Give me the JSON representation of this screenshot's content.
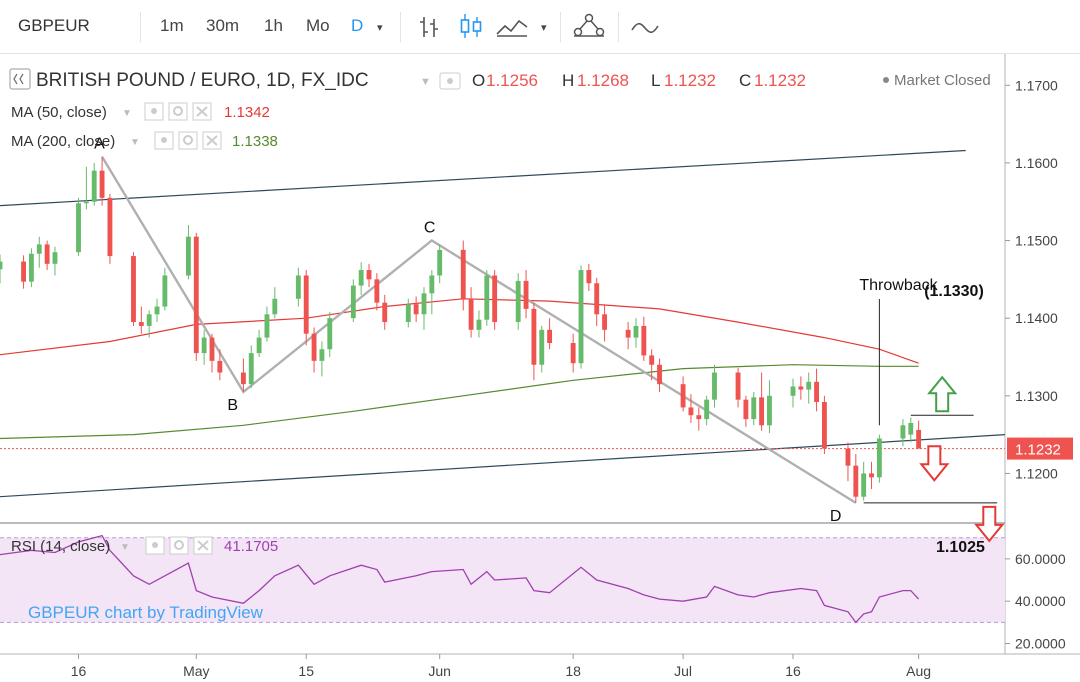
{
  "toolbar": {
    "symbol": "GBPEUR",
    "intervals": [
      "1m",
      "30m",
      "1h",
      "Mo",
      "D"
    ],
    "active_interval": "D",
    "icons": [
      "bar-style-icon",
      "candle-style-icon",
      "area-style-icon",
      "chevron-down-icon",
      "indicators-icon",
      "compare-icon"
    ]
  },
  "legend": {
    "title": "BRITISH POUND / EURO, 1D, FX_IDC",
    "o_label": "O",
    "o_value": "1.1256",
    "h_label": "H",
    "h_value": "1.1268",
    "l_label": "L",
    "l_value": "1.1232",
    "c_label": "C",
    "c_value": "1.1232",
    "market_status": "Market Closed",
    "ma50_label": "MA (50, close)",
    "ma50_value": "1.1342",
    "ma200_label": "MA (200, close)",
    "ma200_value": "1.1338",
    "rsi_label": "RSI (14, close)",
    "rsi_value": "41.1705",
    "watermark": "GBPEUR chart by TradingView"
  },
  "annotations": {
    "A": "A",
    "B": "B",
    "C": "C",
    "D": "D",
    "throwback": "Throwback",
    "target_up": "(1.1330)",
    "target_down": "1.1025"
  },
  "colors": {
    "up": "#66bb6a",
    "down": "#ef5350",
    "ma50": "#e53935",
    "ma200": "#558b2f",
    "channel": "#2e4a58",
    "pattern": "#b0b0b0",
    "rsi": "#a040b0",
    "rsi_band": "#f3e5f5",
    "arrow_up": "#43a047",
    "arrow_down": "#e53935",
    "price_label": "#ef5350"
  },
  "chart_data": {
    "type": "candlestick",
    "symbol": "GBPEUR",
    "interval": "1D",
    "y_axis_ticks": [
      "1.1700",
      "1.1600",
      "1.1500",
      "1.1400",
      "1.1300",
      "1.1200"
    ],
    "y_range": [
      1.114,
      1.173
    ],
    "current_price_label": "1.1232",
    "x_axis_ticks": [
      "16",
      "May",
      "15",
      "Jun",
      "18",
      "Jul",
      "16",
      "Aug"
    ],
    "x_range": [
      "2018-04-06",
      "2018-08-12"
    ],
    "x_tick_dates": [
      "2018-04-16",
      "2018-05-01",
      "2018-05-15",
      "2018-06-01",
      "2018-06-18",
      "2018-07-02",
      "2018-07-16",
      "2018-08-01"
    ],
    "candles": [
      {
        "date": "2018-04-06",
        "o": 1.1463,
        "h": 1.1482,
        "l": 1.1445,
        "c": 1.1473
      },
      {
        "date": "2018-04-09",
        "o": 1.1473,
        "h": 1.1481,
        "l": 1.1438,
        "c": 1.1447
      },
      {
        "date": "2018-04-10",
        "o": 1.1447,
        "h": 1.149,
        "l": 1.144,
        "c": 1.1483
      },
      {
        "date": "2018-04-11",
        "o": 1.1483,
        "h": 1.1505,
        "l": 1.1465,
        "c": 1.1495
      },
      {
        "date": "2018-04-12",
        "o": 1.1495,
        "h": 1.15,
        "l": 1.1462,
        "c": 1.147
      },
      {
        "date": "2018-04-13",
        "o": 1.147,
        "h": 1.1492,
        "l": 1.1455,
        "c": 1.1485
      },
      {
        "date": "2018-04-16",
        "o": 1.1485,
        "h": 1.1555,
        "l": 1.148,
        "c": 1.1548
      },
      {
        "date": "2018-04-17",
        "o": 1.1548,
        "h": 1.1595,
        "l": 1.154,
        "c": 1.155
      },
      {
        "date": "2018-04-18",
        "o": 1.155,
        "h": 1.16,
        "l": 1.1545,
        "c": 1.159
      },
      {
        "date": "2018-04-19",
        "o": 1.159,
        "h": 1.1608,
        "l": 1.1545,
        "c": 1.1555
      },
      {
        "date": "2018-04-20",
        "o": 1.1555,
        "h": 1.156,
        "l": 1.147,
        "c": 1.148
      },
      {
        "date": "2018-04-23",
        "o": 1.148,
        "h": 1.1485,
        "l": 1.139,
        "c": 1.1395
      },
      {
        "date": "2018-04-24",
        "o": 1.1395,
        "h": 1.1415,
        "l": 1.138,
        "c": 1.139
      },
      {
        "date": "2018-04-25",
        "o": 1.139,
        "h": 1.141,
        "l": 1.1375,
        "c": 1.1405
      },
      {
        "date": "2018-04-26",
        "o": 1.1405,
        "h": 1.1425,
        "l": 1.1395,
        "c": 1.1415
      },
      {
        "date": "2018-04-27",
        "o": 1.1415,
        "h": 1.1465,
        "l": 1.141,
        "c": 1.1455
      },
      {
        "date": "2018-04-30",
        "o": 1.1455,
        "h": 1.152,
        "l": 1.145,
        "c": 1.1505
      },
      {
        "date": "2018-05-01",
        "o": 1.1505,
        "h": 1.151,
        "l": 1.1345,
        "c": 1.1355
      },
      {
        "date": "2018-05-02",
        "o": 1.1355,
        "h": 1.1385,
        "l": 1.134,
        "c": 1.1375
      },
      {
        "date": "2018-05-03",
        "o": 1.1375,
        "h": 1.138,
        "l": 1.133,
        "c": 1.1345
      },
      {
        "date": "2018-05-04",
        "o": 1.1345,
        "h": 1.136,
        "l": 1.132,
        "c": 1.133
      },
      {
        "date": "2018-05-07",
        "o": 1.133,
        "h": 1.1348,
        "l": 1.1305,
        "c": 1.1315
      },
      {
        "date": "2018-05-08",
        "o": 1.1315,
        "h": 1.1365,
        "l": 1.131,
        "c": 1.1355
      },
      {
        "date": "2018-05-09",
        "o": 1.1355,
        "h": 1.1385,
        "l": 1.135,
        "c": 1.1375
      },
      {
        "date": "2018-05-10",
        "o": 1.1375,
        "h": 1.1415,
        "l": 1.137,
        "c": 1.1405
      },
      {
        "date": "2018-05-11",
        "o": 1.1405,
        "h": 1.144,
        "l": 1.14,
        "c": 1.1425
      },
      {
        "date": "2018-05-14",
        "o": 1.1425,
        "h": 1.1465,
        "l": 1.1415,
        "c": 1.1455
      },
      {
        "date": "2018-05-15",
        "o": 1.1455,
        "h": 1.1462,
        "l": 1.1365,
        "c": 1.138
      },
      {
        "date": "2018-05-16",
        "o": 1.138,
        "h": 1.1388,
        "l": 1.133,
        "c": 1.1345
      },
      {
        "date": "2018-05-17",
        "o": 1.1345,
        "h": 1.137,
        "l": 1.1325,
        "c": 1.136
      },
      {
        "date": "2018-05-18",
        "o": 1.136,
        "h": 1.1408,
        "l": 1.135,
        "c": 1.14
      },
      {
        "date": "2018-05-21",
        "o": 1.14,
        "h": 1.145,
        "l": 1.1395,
        "c": 1.1442
      },
      {
        "date": "2018-05-22",
        "o": 1.1442,
        "h": 1.1472,
        "l": 1.143,
        "c": 1.1462
      },
      {
        "date": "2018-05-23",
        "o": 1.1462,
        "h": 1.147,
        "l": 1.144,
        "c": 1.145
      },
      {
        "date": "2018-05-24",
        "o": 1.145,
        "h": 1.1458,
        "l": 1.141,
        "c": 1.142
      },
      {
        "date": "2018-05-25",
        "o": 1.142,
        "h": 1.143,
        "l": 1.1385,
        "c": 1.1395
      },
      {
        "date": "2018-05-28",
        "o": 1.1395,
        "h": 1.1425,
        "l": 1.1388,
        "c": 1.1418
      },
      {
        "date": "2018-05-29",
        "o": 1.1418,
        "h": 1.1428,
        "l": 1.1395,
        "c": 1.1405
      },
      {
        "date": "2018-05-30",
        "o": 1.1405,
        "h": 1.144,
        "l": 1.1385,
        "c": 1.1432
      },
      {
        "date": "2018-05-31",
        "o": 1.1432,
        "h": 1.1462,
        "l": 1.1405,
        "c": 1.1455
      },
      {
        "date": "2018-06-01",
        "o": 1.1455,
        "h": 1.1495,
        "l": 1.1445,
        "c": 1.1488
      },
      {
        "date": "2018-06-04",
        "o": 1.1488,
        "h": 1.15,
        "l": 1.141,
        "c": 1.1425
      },
      {
        "date": "2018-06-05",
        "o": 1.1425,
        "h": 1.144,
        "l": 1.1375,
        "c": 1.1385
      },
      {
        "date": "2018-06-06",
        "o": 1.1385,
        "h": 1.141,
        "l": 1.1375,
        "c": 1.1398
      },
      {
        "date": "2018-06-07",
        "o": 1.1398,
        "h": 1.1462,
        "l": 1.139,
        "c": 1.1455
      },
      {
        "date": "2018-06-08",
        "o": 1.1455,
        "h": 1.1462,
        "l": 1.1385,
        "c": 1.1395
      },
      {
        "date": "2018-06-11",
        "o": 1.1395,
        "h": 1.1458,
        "l": 1.1385,
        "c": 1.1448
      },
      {
        "date": "2018-06-12",
        "o": 1.1448,
        "h": 1.1462,
        "l": 1.14,
        "c": 1.1412
      },
      {
        "date": "2018-06-13",
        "o": 1.1412,
        "h": 1.142,
        "l": 1.132,
        "c": 1.134
      },
      {
        "date": "2018-06-14",
        "o": 1.134,
        "h": 1.139,
        "l": 1.133,
        "c": 1.1385
      },
      {
        "date": "2018-06-15",
        "o": 1.1385,
        "h": 1.14,
        "l": 1.136,
        "c": 1.1368
      },
      {
        "date": "2018-06-18",
        "o": 1.1368,
        "h": 1.138,
        "l": 1.133,
        "c": 1.1342
      },
      {
        "date": "2018-06-19",
        "o": 1.1342,
        "h": 1.1468,
        "l": 1.1335,
        "c": 1.1462
      },
      {
        "date": "2018-06-20",
        "o": 1.1462,
        "h": 1.147,
        "l": 1.1435,
        "c": 1.1445
      },
      {
        "date": "2018-06-21",
        "o": 1.1445,
        "h": 1.1452,
        "l": 1.139,
        "c": 1.1405
      },
      {
        "date": "2018-06-22",
        "o": 1.1405,
        "h": 1.1418,
        "l": 1.137,
        "c": 1.1385
      },
      {
        "date": "2018-06-25",
        "o": 1.1385,
        "h": 1.1395,
        "l": 1.136,
        "c": 1.1375
      },
      {
        "date": "2018-06-26",
        "o": 1.1375,
        "h": 1.14,
        "l": 1.1362,
        "c": 1.139
      },
      {
        "date": "2018-06-27",
        "o": 1.139,
        "h": 1.1402,
        "l": 1.1345,
        "c": 1.1352
      },
      {
        "date": "2018-06-28",
        "o": 1.1352,
        "h": 1.136,
        "l": 1.132,
        "c": 1.134
      },
      {
        "date": "2018-06-29",
        "o": 1.134,
        "h": 1.1348,
        "l": 1.1305,
        "c": 1.1315
      },
      {
        "date": "2018-07-02",
        "o": 1.1315,
        "h": 1.1325,
        "l": 1.128,
        "c": 1.1285
      },
      {
        "date": "2018-07-03",
        "o": 1.1285,
        "h": 1.1302,
        "l": 1.1265,
        "c": 1.1275
      },
      {
        "date": "2018-07-04",
        "o": 1.1275,
        "h": 1.1285,
        "l": 1.1255,
        "c": 1.127
      },
      {
        "date": "2018-07-05",
        "o": 1.127,
        "h": 1.13,
        "l": 1.1262,
        "c": 1.1295
      },
      {
        "date": "2018-07-06",
        "o": 1.1295,
        "h": 1.134,
        "l": 1.1285,
        "c": 1.133
      },
      {
        "date": "2018-07-09",
        "o": 1.133,
        "h": 1.1336,
        "l": 1.1285,
        "c": 1.1295
      },
      {
        "date": "2018-07-10",
        "o": 1.1295,
        "h": 1.13,
        "l": 1.126,
        "c": 1.127
      },
      {
        "date": "2018-07-11",
        "o": 1.127,
        "h": 1.1305,
        "l": 1.1262,
        "c": 1.1298
      },
      {
        "date": "2018-07-12",
        "o": 1.1298,
        "h": 1.133,
        "l": 1.1255,
        "c": 1.1262
      },
      {
        "date": "2018-07-13",
        "o": 1.1262,
        "h": 1.132,
        "l": 1.1252,
        "c": 1.13
      },
      {
        "date": "2018-07-16",
        "o": 1.13,
        "h": 1.1322,
        "l": 1.1285,
        "c": 1.1312
      },
      {
        "date": "2018-07-17",
        "o": 1.1312,
        "h": 1.1325,
        "l": 1.1295,
        "c": 1.1308
      },
      {
        "date": "2018-07-18",
        "o": 1.1308,
        "h": 1.133,
        "l": 1.129,
        "c": 1.1318
      },
      {
        "date": "2018-07-19",
        "o": 1.1318,
        "h": 1.1335,
        "l": 1.128,
        "c": 1.1292
      },
      {
        "date": "2018-07-20",
        "o": 1.1292,
        "h": 1.13,
        "l": 1.1225,
        "c": 1.1232
      },
      {
        "date": "2018-07-23",
        "o": 1.1232,
        "h": 1.124,
        "l": 1.119,
        "c": 1.121
      },
      {
        "date": "2018-07-24",
        "o": 1.121,
        "h": 1.1225,
        "l": 1.1162,
        "c": 1.117
      },
      {
        "date": "2018-07-25",
        "o": 1.117,
        "h": 1.1215,
        "l": 1.1165,
        "c": 1.12
      },
      {
        "date": "2018-07-26",
        "o": 1.12,
        "h": 1.1215,
        "l": 1.118,
        "c": 1.1195
      },
      {
        "date": "2018-07-27",
        "o": 1.1195,
        "h": 1.125,
        "l": 1.1188,
        "c": 1.1245
      },
      {
        "date": "2018-07-30",
        "o": 1.1245,
        "h": 1.127,
        "l": 1.1235,
        "c": 1.1262
      },
      {
        "date": "2018-07-31",
        "o": 1.125,
        "h": 1.1272,
        "l": 1.124,
        "c": 1.1265
      },
      {
        "date": "2018-08-01",
        "o": 1.1256,
        "h": 1.1268,
        "l": 1.1232,
        "c": 1.1232
      }
    ],
    "ma50": [
      {
        "date": "2018-04-06",
        "v": 1.1353
      },
      {
        "date": "2018-04-20",
        "v": 1.137
      },
      {
        "date": "2018-05-01",
        "v": 1.1392
      },
      {
        "date": "2018-05-15",
        "v": 1.14
      },
      {
        "date": "2018-05-25",
        "v": 1.1415
      },
      {
        "date": "2018-06-04",
        "v": 1.1425
      },
      {
        "date": "2018-06-15",
        "v": 1.1422
      },
      {
        "date": "2018-06-29",
        "v": 1.1412
      },
      {
        "date": "2018-07-09",
        "v": 1.1395
      },
      {
        "date": "2018-07-20",
        "v": 1.1375
      },
      {
        "date": "2018-07-27",
        "v": 1.136
      },
      {
        "date": "2018-08-01",
        "v": 1.1342
      }
    ],
    "ma200": [
      {
        "date": "2018-04-06",
        "v": 1.1245
      },
      {
        "date": "2018-04-23",
        "v": 1.125
      },
      {
        "date": "2018-05-07",
        "v": 1.1262
      },
      {
        "date": "2018-05-21",
        "v": 1.128
      },
      {
        "date": "2018-06-04",
        "v": 1.13
      },
      {
        "date": "2018-06-18",
        "v": 1.132
      },
      {
        "date": "2018-07-02",
        "v": 1.1335
      },
      {
        "date": "2018-07-16",
        "v": 1.134
      },
      {
        "date": "2018-07-27",
        "v": 1.1338
      },
      {
        "date": "2018-08-01",
        "v": 1.1338
      }
    ],
    "channel_upper": [
      {
        "date": "2018-04-06",
        "v": 1.1545
      },
      {
        "date": "2018-08-07",
        "v": 1.1616
      }
    ],
    "channel_lower": [
      {
        "date": "2018-04-06",
        "v": 1.117
      },
      {
        "date": "2018-08-12",
        "v": 1.125
      }
    ],
    "pattern": [
      {
        "label": "A",
        "date": "2018-04-19",
        "v": 1.1608
      },
      {
        "label": "B",
        "date": "2018-05-07",
        "v": 1.1305
      },
      {
        "label": "C",
        "date": "2018-05-31",
        "v": 1.15
      },
      {
        "label": "D",
        "date": "2018-07-24",
        "v": 1.1162
      }
    ],
    "throwback_level": 1.1275,
    "support_level": 1.1162,
    "current_price": 1.1232,
    "rsi": {
      "label": "RSI (14, close)",
      "y_axis_ticks": [
        "60.0000",
        "40.0000",
        "20.0000"
      ],
      "y_range": [
        16,
        76
      ],
      "band": [
        30,
        70
      ],
      "points": [
        {
          "date": "2018-04-06",
          "v": 62
        },
        {
          "date": "2018-04-10",
          "v": 64
        },
        {
          "date": "2018-04-13",
          "v": 63
        },
        {
          "date": "2018-04-16",
          "v": 68
        },
        {
          "date": "2018-04-19",
          "v": 71
        },
        {
          "date": "2018-04-20",
          "v": 64
        },
        {
          "date": "2018-04-23",
          "v": 52
        },
        {
          "date": "2018-04-25",
          "v": 48
        },
        {
          "date": "2018-04-27",
          "v": 52
        },
        {
          "date": "2018-04-30",
          "v": 58
        },
        {
          "date": "2018-05-01",
          "v": 45
        },
        {
          "date": "2018-05-03",
          "v": 42
        },
        {
          "date": "2018-05-07",
          "v": 39
        },
        {
          "date": "2018-05-09",
          "v": 45
        },
        {
          "date": "2018-05-11",
          "v": 52
        },
        {
          "date": "2018-05-14",
          "v": 57
        },
        {
          "date": "2018-05-16",
          "v": 48
        },
        {
          "date": "2018-05-18",
          "v": 52
        },
        {
          "date": "2018-05-22",
          "v": 57
        },
        {
          "date": "2018-05-24",
          "v": 55
        },
        {
          "date": "2018-05-25",
          "v": 49
        },
        {
          "date": "2018-05-29",
          "v": 52
        },
        {
          "date": "2018-05-31",
          "v": 54
        },
        {
          "date": "2018-06-04",
          "v": 55
        },
        {
          "date": "2018-06-05",
          "v": 48
        },
        {
          "date": "2018-06-07",
          "v": 54
        },
        {
          "date": "2018-06-08",
          "v": 50
        },
        {
          "date": "2018-06-12",
          "v": 51
        },
        {
          "date": "2018-06-13",
          "v": 45
        },
        {
          "date": "2018-06-15",
          "v": 44
        },
        {
          "date": "2018-06-19",
          "v": 56
        },
        {
          "date": "2018-06-21",
          "v": 50
        },
        {
          "date": "2018-06-25",
          "v": 46
        },
        {
          "date": "2018-06-27",
          "v": 43
        },
        {
          "date": "2018-06-29",
          "v": 41
        },
        {
          "date": "2018-07-02",
          "v": 40
        },
        {
          "date": "2018-07-05",
          "v": 42
        },
        {
          "date": "2018-07-06",
          "v": 47
        },
        {
          "date": "2018-07-09",
          "v": 43
        },
        {
          "date": "2018-07-11",
          "v": 42
        },
        {
          "date": "2018-07-13",
          "v": 44
        },
        {
          "date": "2018-07-17",
          "v": 46
        },
        {
          "date": "2018-07-19",
          "v": 45
        },
        {
          "date": "2018-07-20",
          "v": 38
        },
        {
          "date": "2018-07-23",
          "v": 35
        },
        {
          "date": "2018-07-24",
          "v": 30
        },
        {
          "date": "2018-07-25",
          "v": 34
        },
        {
          "date": "2018-07-26",
          "v": 35
        },
        {
          "date": "2018-07-27",
          "v": 42
        },
        {
          "date": "2018-07-30",
          "v": 45
        },
        {
          "date": "2018-07-31",
          "v": 45
        },
        {
          "date": "2018-08-01",
          "v": 41
        }
      ]
    }
  }
}
